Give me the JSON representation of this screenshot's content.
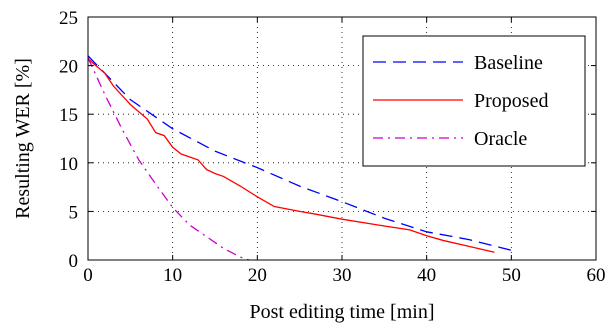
{
  "chart_data": {
    "type": "line",
    "xlabel": "Post editing time [min]",
    "ylabel": "Resulting WER [%]",
    "xlim": [
      0,
      60
    ],
    "ylim": [
      0,
      25
    ],
    "xticks": [
      "0",
      "10",
      "20",
      "30",
      "40",
      "50",
      "60"
    ],
    "yticks": [
      "0",
      "5",
      "10",
      "15",
      "20",
      "25"
    ],
    "grid": true,
    "legend_position": "top-right",
    "series": [
      {
        "name": "Baseline",
        "color": "#0000ff",
        "style": "dashed",
        "points": [
          [
            0,
            21
          ],
          [
            5,
            16.5
          ],
          [
            10,
            13.5
          ],
          [
            15,
            11.2
          ],
          [
            20,
            9.5
          ],
          [
            25,
            7.6
          ],
          [
            30,
            6.0
          ],
          [
            35,
            4.3
          ],
          [
            40,
            2.9
          ],
          [
            45,
            2.1
          ],
          [
            50,
            1.0
          ]
        ]
      },
      {
        "name": "Proposed",
        "color": "#ff0000",
        "style": "solid",
        "points": [
          [
            0,
            20.7
          ],
          [
            2,
            19.2
          ],
          [
            3,
            17.9
          ],
          [
            5,
            16.0
          ],
          [
            7,
            14.5
          ],
          [
            8,
            13.1
          ],
          [
            9,
            12.8
          ],
          [
            10,
            11.6
          ],
          [
            11,
            10.9
          ],
          [
            13,
            10.3
          ],
          [
            14,
            9.3
          ],
          [
            15,
            8.9
          ],
          [
            16,
            8.6
          ],
          [
            18,
            7.6
          ],
          [
            20,
            6.5
          ],
          [
            22,
            5.5
          ],
          [
            25,
            5.0
          ],
          [
            27,
            4.7
          ],
          [
            30,
            4.2
          ],
          [
            35,
            3.5
          ],
          [
            38,
            3.1
          ],
          [
            40,
            2.5
          ],
          [
            42,
            2.0
          ],
          [
            45,
            1.4
          ],
          [
            48,
            0.8
          ]
        ]
      },
      {
        "name": "Oracle",
        "color": "#cc00cc",
        "style": "dashdot",
        "points": [
          [
            0,
            20.8
          ],
          [
            2,
            17.0
          ],
          [
            4,
            13.5
          ],
          [
            6,
            10.3
          ],
          [
            8,
            7.8
          ],
          [
            10,
            5.4
          ],
          [
            12,
            3.6
          ],
          [
            14,
            2.4
          ],
          [
            16,
            1.2
          ],
          [
            18,
            0.3
          ],
          [
            19,
            0.0
          ]
        ]
      }
    ]
  }
}
